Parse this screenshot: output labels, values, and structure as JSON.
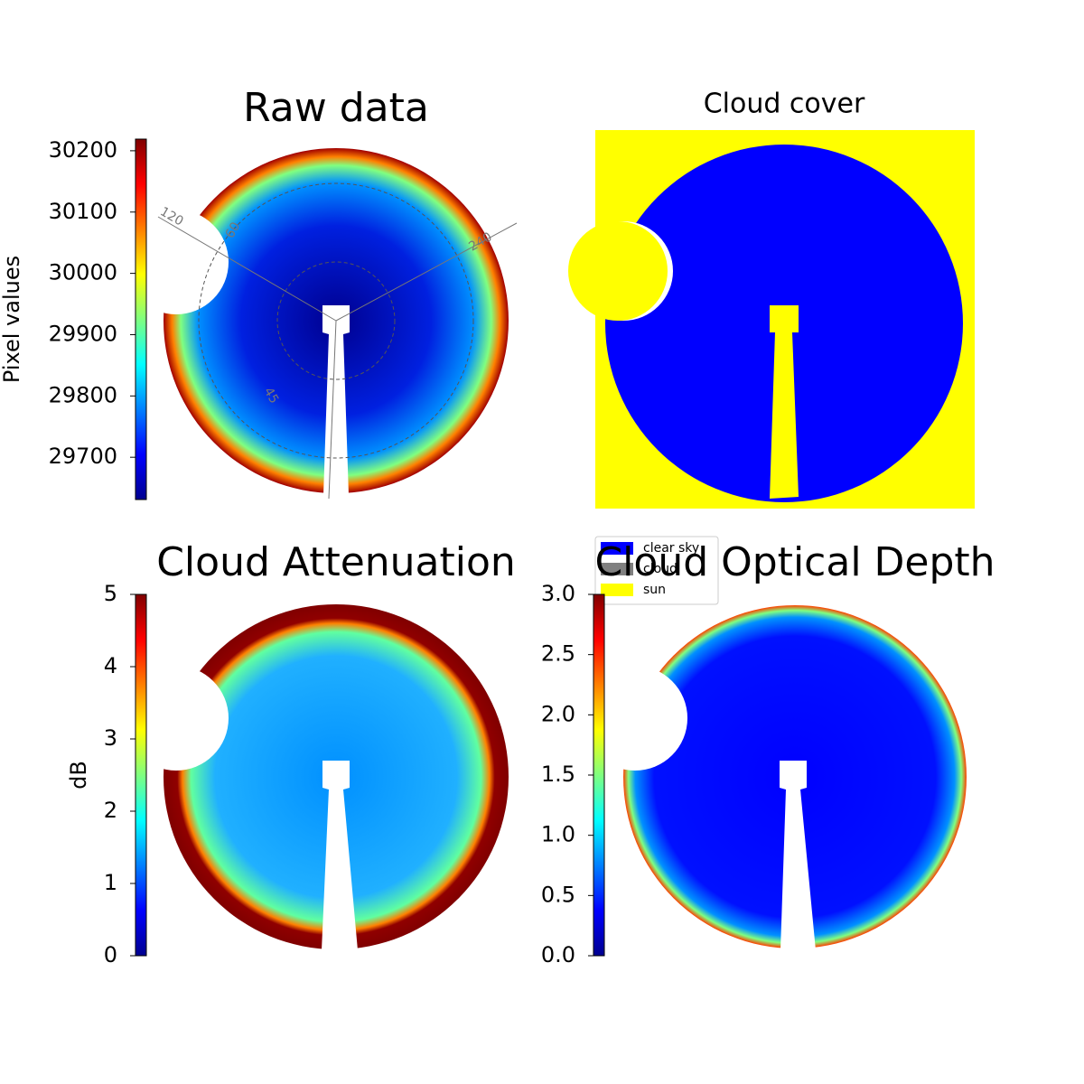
{
  "chart_data": [
    {
      "type": "colorbar-image",
      "title": "Raw data",
      "ylabel": "Pixel values",
      "colormap": "jet",
      "ylim": [
        29631,
        30219
      ],
      "yticks": [
        29700,
        29800,
        29900,
        30000,
        30100,
        30200
      ],
      "polar_labels": [
        "120",
        "60",
        "240",
        "45"
      ]
    },
    {
      "type": "category-image",
      "title": "Cloud cover",
      "legend": [
        {
          "name": "clear sky",
          "color": "#0000ff"
        },
        {
          "name": "cloud",
          "color": "#808080"
        },
        {
          "name": "sun",
          "color": "#ffff00"
        }
      ]
    },
    {
      "type": "colorbar-image",
      "title": "Cloud Attenuation",
      "ylabel": "dB",
      "colormap": "jet",
      "ylim": [
        0,
        5
      ],
      "yticks": [
        0,
        1,
        2,
        3,
        4,
        5
      ]
    },
    {
      "type": "colorbar-image",
      "title": "Cloud Optical Depth",
      "colormap": "jet",
      "ylim": [
        0,
        3
      ],
      "yticks": [
        {
          "value": 0,
          "label": "0.0"
        },
        {
          "value": 0.5,
          "label": "0.5"
        },
        {
          "value": 1,
          "label": "1.0"
        },
        {
          "value": 1.5,
          "label": "1.5"
        },
        {
          "value": 2,
          "label": "2.0"
        },
        {
          "value": 2.5,
          "label": "2.5"
        },
        {
          "value": 3,
          "label": "3.0"
        }
      ]
    }
  ]
}
